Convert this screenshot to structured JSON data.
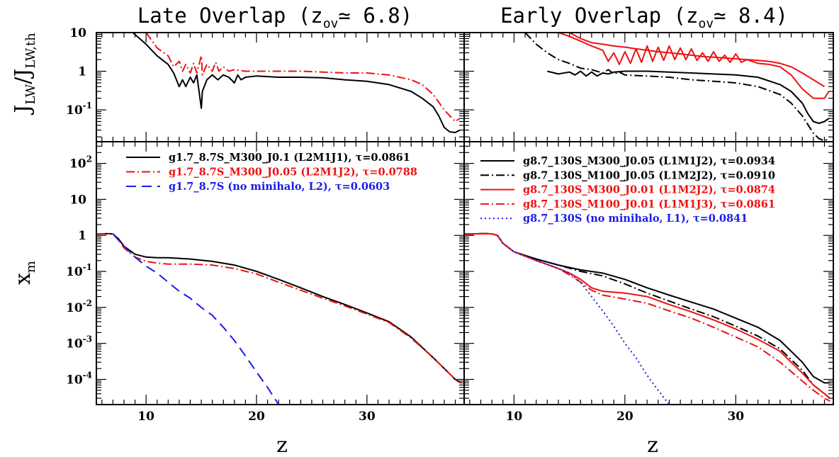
{
  "figure": {
    "titles": {
      "left": "Late Overlap (zₒᵥ≃ 6.8)",
      "right": "Early Overlap (zₒᵥ≃ 8.4)",
      "left_main": "Late Overlap (z",
      "left_sub": "ov",
      "left_tail": "≃ 6.8)",
      "right_main": "Early Overlap (z",
      "right_sub": "ov",
      "right_tail": "≃ 8.4)"
    },
    "ylabel_top": {
      "main1": "J",
      "sub1": "LW",
      "mid": "/J",
      "sub2": "LW,th"
    },
    "ylabel_bottom": {
      "main": "x",
      "sub": "m"
    },
    "xlabel": "z",
    "colors": {
      "black": "#000000",
      "red": "#ee1111",
      "blue": "#1a1aee"
    }
  },
  "chart_data": [
    {
      "panel": "top-left",
      "type": "line",
      "title": "Late Overlap (z_ov ≃ 6.8)",
      "ylabel": "J_LW/J_LW,th",
      "yscale": "log",
      "xlim": [
        5.5,
        38.8
      ],
      "ylim": [
        0.015,
        10
      ],
      "x_ticks": [
        10,
        20,
        30
      ],
      "y_ticks": [
        {
          "value": 10,
          "label": "10",
          "exp": ""
        },
        {
          "value": 1,
          "label": "1",
          "exp": ""
        },
        {
          "value": 0.1,
          "label": "10",
          "exp": "-1"
        }
      ],
      "series": [
        {
          "color": "black",
          "dash": "solid",
          "x": [
            8.8,
            10,
            11,
            12,
            12.5,
            13,
            13.3,
            13.6,
            14,
            14.3,
            14.6,
            15,
            15.1,
            15.5,
            16,
            16.5,
            17,
            17.5,
            18,
            18.3,
            18.6,
            19,
            20,
            22,
            24,
            26,
            28,
            30,
            32,
            34,
            35,
            36,
            36.5,
            37,
            37.5,
            38,
            38.4
          ],
          "y": [
            10,
            5,
            2.5,
            1.5,
            0.9,
            0.4,
            0.6,
            0.4,
            0.7,
            0.5,
            0.8,
            0.11,
            0.3,
            0.6,
            0.8,
            0.6,
            0.8,
            0.7,
            0.5,
            0.8,
            0.6,
            0.7,
            0.75,
            0.7,
            0.7,
            0.68,
            0.6,
            0.55,
            0.45,
            0.3,
            0.2,
            0.12,
            0.07,
            0.035,
            0.027,
            0.026,
            0.03
          ]
        },
        {
          "color": "red",
          "dash": "dashdot",
          "x": [
            10,
            11,
            12,
            12.5,
            13,
            13.3,
            13.6,
            14,
            14.3,
            14.6,
            15,
            15.1,
            15.5,
            16,
            16.3,
            16.6,
            17,
            17.5,
            18,
            19,
            20,
            22,
            24,
            26,
            28,
            30,
            32,
            34,
            35,
            36,
            37,
            37.5,
            38,
            38.4
          ],
          "y": [
            10,
            4,
            2.5,
            1.3,
            1.8,
            1.0,
            1.5,
            0.9,
            1.6,
            0.9,
            2.5,
            0.8,
            1.5,
            1.0,
            1.7,
            1.0,
            1.3,
            1.0,
            1.1,
            1.0,
            1.0,
            1.0,
            1.0,
            0.95,
            0.9,
            0.9,
            0.8,
            0.6,
            0.45,
            0.25,
            0.1,
            0.07,
            0.05,
            0.06
          ]
        }
      ]
    },
    {
      "panel": "top-right",
      "type": "line",
      "title": "Early Overlap (z_ov ≃ 8.4)",
      "yscale": "log",
      "xlim": [
        5.5,
        38.8
      ],
      "ylim": [
        0.015,
        10
      ],
      "x_ticks": [
        10,
        20,
        30
      ],
      "series": [
        {
          "color": "black",
          "dash": "solid",
          "x": [
            13,
            14,
            15,
            15.5,
            16,
            16.5,
            17,
            17.5,
            18,
            18.5,
            19,
            20,
            22,
            24,
            26,
            28,
            30,
            32,
            34,
            35,
            36,
            36.5,
            37,
            37.5,
            38,
            38.4
          ],
          "y": [
            1.0,
            0.85,
            0.95,
            0.8,
            1.0,
            0.75,
            0.95,
            0.75,
            0.9,
            0.85,
            0.95,
            1.0,
            1.0,
            0.95,
            0.9,
            0.85,
            0.8,
            0.7,
            0.45,
            0.3,
            0.15,
            0.08,
            0.05,
            0.045,
            0.05,
            0.06
          ]
        },
        {
          "color": "black",
          "dash": "dashdot",
          "x": [
            11,
            12,
            13,
            14,
            15,
            16,
            17,
            18,
            18.5,
            19,
            19.5,
            20,
            22,
            24,
            26,
            28,
            30,
            32,
            34,
            35,
            36,
            37,
            37.5,
            38,
            38.4
          ],
          "y": [
            10,
            5,
            3,
            2,
            1.6,
            1.2,
            1.1,
            0.9,
            1.1,
            0.85,
            0.95,
            0.8,
            0.75,
            0.7,
            0.6,
            0.55,
            0.5,
            0.4,
            0.25,
            0.15,
            0.07,
            0.025,
            0.018,
            0.016,
            0.018
          ]
        },
        {
          "color": "red",
          "dash": "solid",
          "x": [
            14,
            15,
            16,
            17,
            18,
            18.5,
            19,
            19.5,
            20,
            20.5,
            21,
            21.5,
            22,
            22.5,
            23,
            23.5,
            24,
            24.5,
            25,
            25.5,
            26,
            26.5,
            27,
            27.5,
            28,
            28.5,
            29,
            29.5,
            30,
            30.5,
            31,
            32,
            33,
            34,
            35,
            36,
            37,
            37.5,
            38,
            38.4
          ],
          "y": [
            10,
            8,
            6,
            4.5,
            3.5,
            1.8,
            3.0,
            1.5,
            3.2,
            1.6,
            3.8,
            1.7,
            4.5,
            1.8,
            4.2,
            1.9,
            4.5,
            2.0,
            4.0,
            2.0,
            3.8,
            1.9,
            3.0,
            1.8,
            3.2,
            1.8,
            2.6,
            1.7,
            2.8,
            1.7,
            2.0,
            1.6,
            1.5,
            1.3,
            0.8,
            0.35,
            0.2,
            0.2,
            0.2,
            0.3
          ]
        },
        {
          "color": "red",
          "dash": "solid",
          "x": [
            15,
            16,
            17,
            18,
            19,
            20,
            21,
            22,
            23,
            24,
            25,
            26,
            27,
            28,
            29,
            30,
            31,
            32,
            33,
            34,
            35,
            36,
            37,
            38
          ],
          "y": [
            10,
            7,
            5.5,
            5,
            4.5,
            4.2,
            3.8,
            3.5,
            3.2,
            3.0,
            2.8,
            2.6,
            2.4,
            2.3,
            2.2,
            2.1,
            2.0,
            1.9,
            1.8,
            1.6,
            1.3,
            0.9,
            0.6,
            0.4
          ]
        }
      ]
    },
    {
      "panel": "bottom-left",
      "type": "line",
      "ylabel": "x_m",
      "xlabel": "z",
      "yscale": "log",
      "xlim": [
        5.5,
        38.8
      ],
      "ylim": [
        2e-05,
        400
      ],
      "x_ticks": [
        10,
        20,
        30
      ],
      "y_ticks": [
        {
          "value": 100,
          "label": "10",
          "exp": "2"
        },
        {
          "value": 10,
          "label": "10",
          "exp": ""
        },
        {
          "value": 1,
          "label": "1",
          "exp": ""
        },
        {
          "value": 0.1,
          "label": "10",
          "exp": "-1"
        },
        {
          "value": 0.01,
          "label": "10",
          "exp": "-2"
        },
        {
          "value": 0.001,
          "label": "10",
          "exp": "-3"
        },
        {
          "value": 0.0001,
          "label": "10",
          "exp": "-4"
        }
      ],
      "series": [
        {
          "name": "g1.7_8.7S_M300_J0.1    (L2M1J1), τ=0.0861",
          "color": "black",
          "dash": "solid",
          "x": [
            5.5,
            6,
            6.5,
            7,
            7.5,
            8,
            9,
            10,
            11,
            12,
            14,
            16,
            18,
            20,
            22,
            24,
            26,
            28,
            30,
            32,
            34,
            36,
            38,
            38.5
          ],
          "y": [
            1.1,
            1.1,
            1.12,
            1.1,
            0.8,
            0.5,
            0.3,
            0.25,
            0.24,
            0.24,
            0.22,
            0.19,
            0.15,
            0.1,
            0.06,
            0.035,
            0.02,
            0.012,
            0.007,
            0.004,
            0.0015,
            0.0004,
            0.0001,
            8e-05
          ]
        },
        {
          "name": "g1.7_8.7S_M300_J0.05 (L2M1J2), τ=0.0788",
          "color": "red",
          "dash": "dashdot",
          "x": [
            5.5,
            6,
            6.5,
            7,
            7.5,
            8,
            9,
            10,
            11,
            12,
            14,
            16,
            18,
            20,
            22,
            24,
            26,
            28,
            30,
            32,
            34,
            36,
            38,
            38.5
          ],
          "y": [
            1.1,
            1.1,
            1.12,
            1.1,
            0.75,
            0.45,
            0.25,
            0.19,
            0.17,
            0.16,
            0.16,
            0.15,
            0.12,
            0.085,
            0.05,
            0.03,
            0.018,
            0.011,
            0.0065,
            0.0038,
            0.0014,
            0.0004,
            0.0001,
            8e-05
          ]
        },
        {
          "name": "g1.7_8.7S (no minihalo, L2), τ=0.0603",
          "color": "blue",
          "dash": "dashed",
          "x": [
            7,
            8,
            9,
            10,
            11,
            12,
            13,
            14,
            15,
            16,
            17,
            18,
            19,
            20,
            21,
            22
          ],
          "y": [
            1.1,
            0.5,
            0.25,
            0.14,
            0.09,
            0.05,
            0.028,
            0.018,
            0.01,
            0.006,
            0.0028,
            0.0012,
            0.00045,
            0.00016,
            6e-05,
            2e-05
          ]
        }
      ]
    },
    {
      "panel": "bottom-right",
      "type": "line",
      "xlabel": "z",
      "yscale": "log",
      "xlim": [
        5.5,
        38.8
      ],
      "ylim": [
        2e-05,
        400
      ],
      "x_ticks": [
        10,
        20,
        30
      ],
      "series": [
        {
          "name": "g8.7_130S_M300_J0.05 (L1M1J2), τ=0.0934",
          "color": "black",
          "dash": "solid",
          "x": [
            5.5,
            6,
            6.5,
            7,
            7.5,
            8,
            8.5,
            9,
            10,
            12,
            14,
            16,
            18,
            20,
            22,
            24,
            26,
            28,
            30,
            32,
            34,
            36,
            37,
            38,
            38.5
          ],
          "y": [
            1.1,
            1.1,
            1.1,
            1.12,
            1.12,
            1.1,
            1.0,
            0.6,
            0.35,
            0.22,
            0.15,
            0.11,
            0.09,
            0.06,
            0.035,
            0.022,
            0.014,
            0.009,
            0.005,
            0.0028,
            0.0012,
            0.0003,
            0.00012,
            8e-05,
            8e-05
          ]
        },
        {
          "name": "g8.7_130S_M100_J0.05 (L1M2J2), τ=0.0910",
          "color": "black",
          "dash": "dashdot",
          "x": [
            5.5,
            6,
            6.5,
            7,
            7.5,
            8,
            8.5,
            9,
            10,
            12,
            14,
            16,
            18,
            20,
            22,
            24,
            26,
            28,
            30,
            32,
            34,
            36,
            37,
            38,
            38.5
          ],
          "y": [
            1.1,
            1.1,
            1.1,
            1.12,
            1.12,
            1.1,
            1.0,
            0.6,
            0.35,
            0.22,
            0.15,
            0.1,
            0.075,
            0.045,
            0.025,
            0.015,
            0.009,
            0.0055,
            0.003,
            0.0016,
            0.0007,
            0.00018,
            7e-05,
            4e-05,
            3e-05
          ]
        },
        {
          "name": "g8.7_130S_M300_J0.01 (L1M2J2), τ=0.0874",
          "color": "red",
          "dash": "solid",
          "x": [
            5.5,
            6,
            6.5,
            7,
            7.5,
            8,
            8.5,
            9,
            10,
            12,
            14,
            15,
            16,
            17,
            18,
            20,
            22,
            24,
            26,
            28,
            30,
            32,
            34,
            36,
            37,
            38,
            38.5
          ],
          "y": [
            1.1,
            1.1,
            1.1,
            1.12,
            1.12,
            1.1,
            1.0,
            0.6,
            0.35,
            0.2,
            0.12,
            0.09,
            0.06,
            0.035,
            0.028,
            0.025,
            0.02,
            0.012,
            0.0075,
            0.0045,
            0.0025,
            0.0013,
            0.0006,
            0.00015,
            7e-05,
            4e-05,
            3e-05
          ]
        },
        {
          "name": "g8.7_130S_M100_J0.01 (L1M1J3), τ=0.0861",
          "color": "red",
          "dash": "dashdot",
          "x": [
            5.5,
            6,
            6.5,
            7,
            7.5,
            8,
            8.5,
            9,
            10,
            12,
            14,
            15,
            16,
            17,
            18,
            20,
            22,
            24,
            26,
            28,
            30,
            32,
            34,
            36,
            37,
            38,
            38.5
          ],
          "y": [
            1.1,
            1.1,
            1.1,
            1.12,
            1.12,
            1.1,
            1.0,
            0.6,
            0.35,
            0.2,
            0.12,
            0.08,
            0.05,
            0.03,
            0.022,
            0.017,
            0.013,
            0.008,
            0.005,
            0.0028,
            0.0015,
            0.0008,
            0.0003,
            9e-05,
            5e-05,
            3e-05,
            2.5e-05
          ]
        },
        {
          "name": "g8.7_130S (no minihalo, L1),  τ=0.0841",
          "color": "blue",
          "dash": "dotted",
          "x": [
            8.5,
            9,
            10,
            12,
            14,
            15,
            16,
            17,
            18,
            19,
            20,
            21,
            22,
            23,
            24
          ],
          "y": [
            1.0,
            0.6,
            0.35,
            0.2,
            0.12,
            0.09,
            0.05,
            0.02,
            0.008,
            0.003,
            0.001,
            0.0004,
            0.00013,
            5e-05,
            2e-05
          ]
        }
      ]
    }
  ]
}
